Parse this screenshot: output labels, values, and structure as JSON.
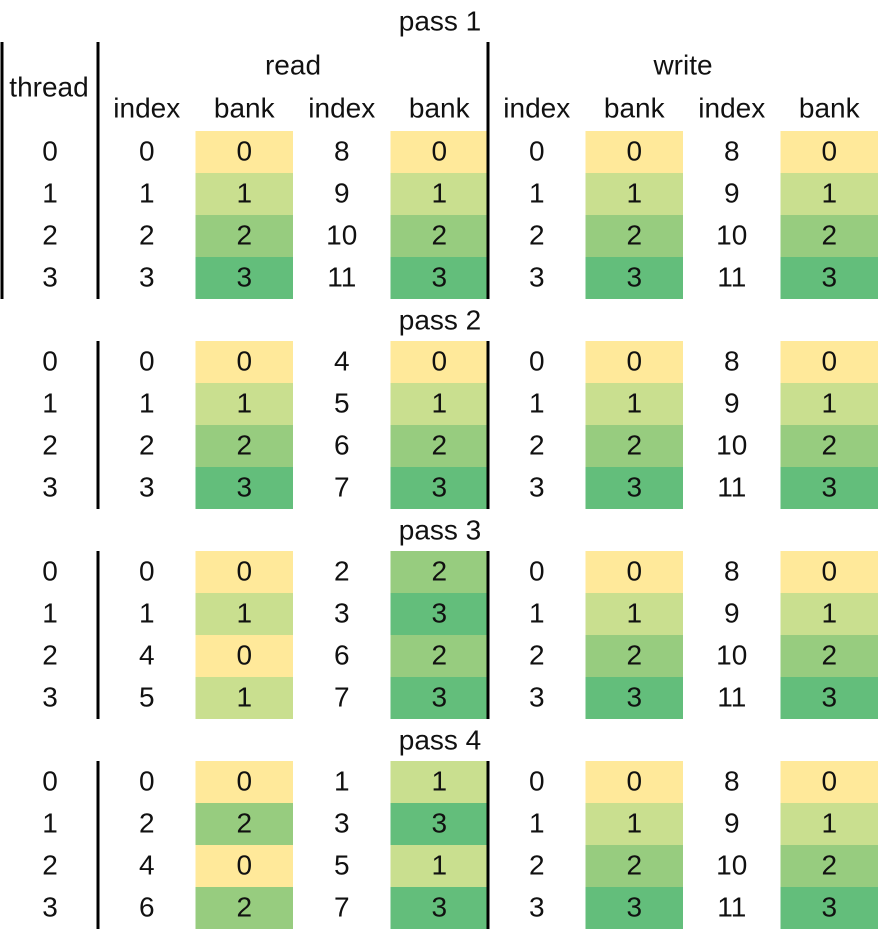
{
  "header": {
    "thread": "thread",
    "read": "read",
    "write": "write",
    "sub": [
      "index",
      "bank",
      "index",
      "bank",
      "index",
      "bank",
      "index",
      "bank"
    ]
  },
  "bank_colors": [
    "#ffe99a",
    "#c9df8f",
    "#97cc7f",
    "#63be7b"
  ],
  "passes": [
    {
      "title": "pass 1",
      "rows": [
        [
          0,
          0,
          0,
          8,
          0,
          0,
          0,
          8,
          0
        ],
        [
          1,
          1,
          1,
          9,
          1,
          1,
          1,
          9,
          1
        ],
        [
          2,
          2,
          2,
          10,
          2,
          2,
          2,
          10,
          2
        ],
        [
          3,
          3,
          3,
          11,
          3,
          3,
          3,
          11,
          3
        ]
      ]
    },
    {
      "title": "pass 2",
      "rows": [
        [
          0,
          0,
          0,
          4,
          0,
          0,
          0,
          8,
          0
        ],
        [
          1,
          1,
          1,
          5,
          1,
          1,
          1,
          9,
          1
        ],
        [
          2,
          2,
          2,
          6,
          2,
          2,
          2,
          10,
          2
        ],
        [
          3,
          3,
          3,
          7,
          3,
          3,
          3,
          11,
          3
        ]
      ]
    },
    {
      "title": "pass 3",
      "rows": [
        [
          0,
          0,
          0,
          2,
          2,
          0,
          0,
          8,
          0
        ],
        [
          1,
          1,
          1,
          3,
          3,
          1,
          1,
          9,
          1
        ],
        [
          2,
          4,
          0,
          6,
          2,
          2,
          2,
          10,
          2
        ],
        [
          3,
          5,
          1,
          7,
          3,
          3,
          3,
          11,
          3
        ]
      ]
    },
    {
      "title": "pass 4",
      "rows": [
        [
          0,
          0,
          0,
          1,
          1,
          0,
          0,
          8,
          0
        ],
        [
          1,
          2,
          2,
          3,
          3,
          1,
          1,
          9,
          1
        ],
        [
          2,
          4,
          0,
          5,
          1,
          2,
          2,
          10,
          2
        ],
        [
          3,
          6,
          2,
          7,
          3,
          3,
          3,
          11,
          3
        ]
      ]
    }
  ]
}
